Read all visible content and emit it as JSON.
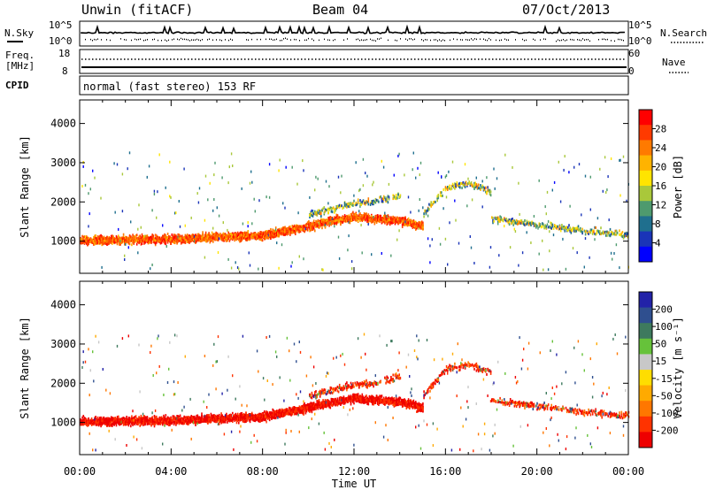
{
  "header": {
    "station": "Unwin (fitACF)",
    "beam": "Beam 04",
    "date": "07/Oct/2013"
  },
  "panels": {
    "nsky": {
      "label": "N.Sky",
      "ytick_top": "10^5",
      "ytick_bottom": "10^0",
      "right_label": "N.Search",
      "right_top": "10^5",
      "right_bottom": "10^0"
    },
    "freq": {
      "label_line1": "Freq.",
      "label_line2": "[MHz]",
      "ytick_top": "18",
      "ytick_bottom": "8",
      "right_label": "Nave",
      "right_top": "60",
      "right_bottom": "0"
    },
    "cpid": {
      "label": "CPID",
      "text": "normal (fast stereo) 153 RF"
    }
  },
  "colorbars": {
    "power": {
      "label": "Power [dB]",
      "ticks": [
        "28",
        "24",
        "20",
        "16",
        "12",
        "8",
        "4"
      ],
      "colors": [
        "#ff0000",
        "#ff3a00",
        "#ff7a00",
        "#ffb300",
        "#ffe400",
        "#a9c83a",
        "#4e9a6e",
        "#1f6f8e",
        "#1a34b8",
        "#0000ff"
      ]
    },
    "velocity": {
      "label": "Velocity [m s⁻¹]",
      "ticks": [
        "200",
        "100",
        "50",
        "15",
        "-15",
        "-50",
        "-100",
        "-200"
      ],
      "colors": [
        "#2222a8",
        "#2f4f8f",
        "#3e7a5e",
        "#66c23a",
        "#c8c8c8",
        "#ffdd00",
        "#ffaa00",
        "#ff7700",
        "#ff3300",
        "#ee0000"
      ]
    }
  },
  "chart_data": {
    "type": "heatmap",
    "xlabel": "Time UT",
    "x_ticks": [
      "00:00",
      "04:00",
      "08:00",
      "12:00",
      "16:00",
      "20:00",
      "00:00"
    ],
    "xlim_hours": [
      0,
      24
    ],
    "ylabel": "Slant Range [km]",
    "y_ticks": [
      1000,
      2000,
      3000,
      4000
    ],
    "ylim_km": [
      180,
      4600
    ],
    "features": [
      {
        "name": "main band",
        "hours": [
          0,
          4,
          8,
          10,
          11,
          12,
          13,
          14,
          15
        ],
        "range_km": [
          1050,
          1080,
          1180,
          1400,
          1550,
          1650,
          1600,
          1550,
          1400
        ]
      },
      {
        "name": "upper arc",
        "hours": [
          10,
          11,
          12,
          13,
          14
        ],
        "range_km": [
          1700,
          1850,
          2000,
          2050,
          2200
        ]
      },
      {
        "name": "afternoon echoes",
        "hours": [
          15,
          16,
          17,
          18
        ],
        "range_km": [
          1700,
          2400,
          2500,
          2300
        ]
      },
      {
        "name": "evening band",
        "hours": [
          18,
          20,
          22,
          24
        ],
        "range_km": [
          1600,
          1450,
          1300,
          1200
        ]
      }
    ]
  }
}
